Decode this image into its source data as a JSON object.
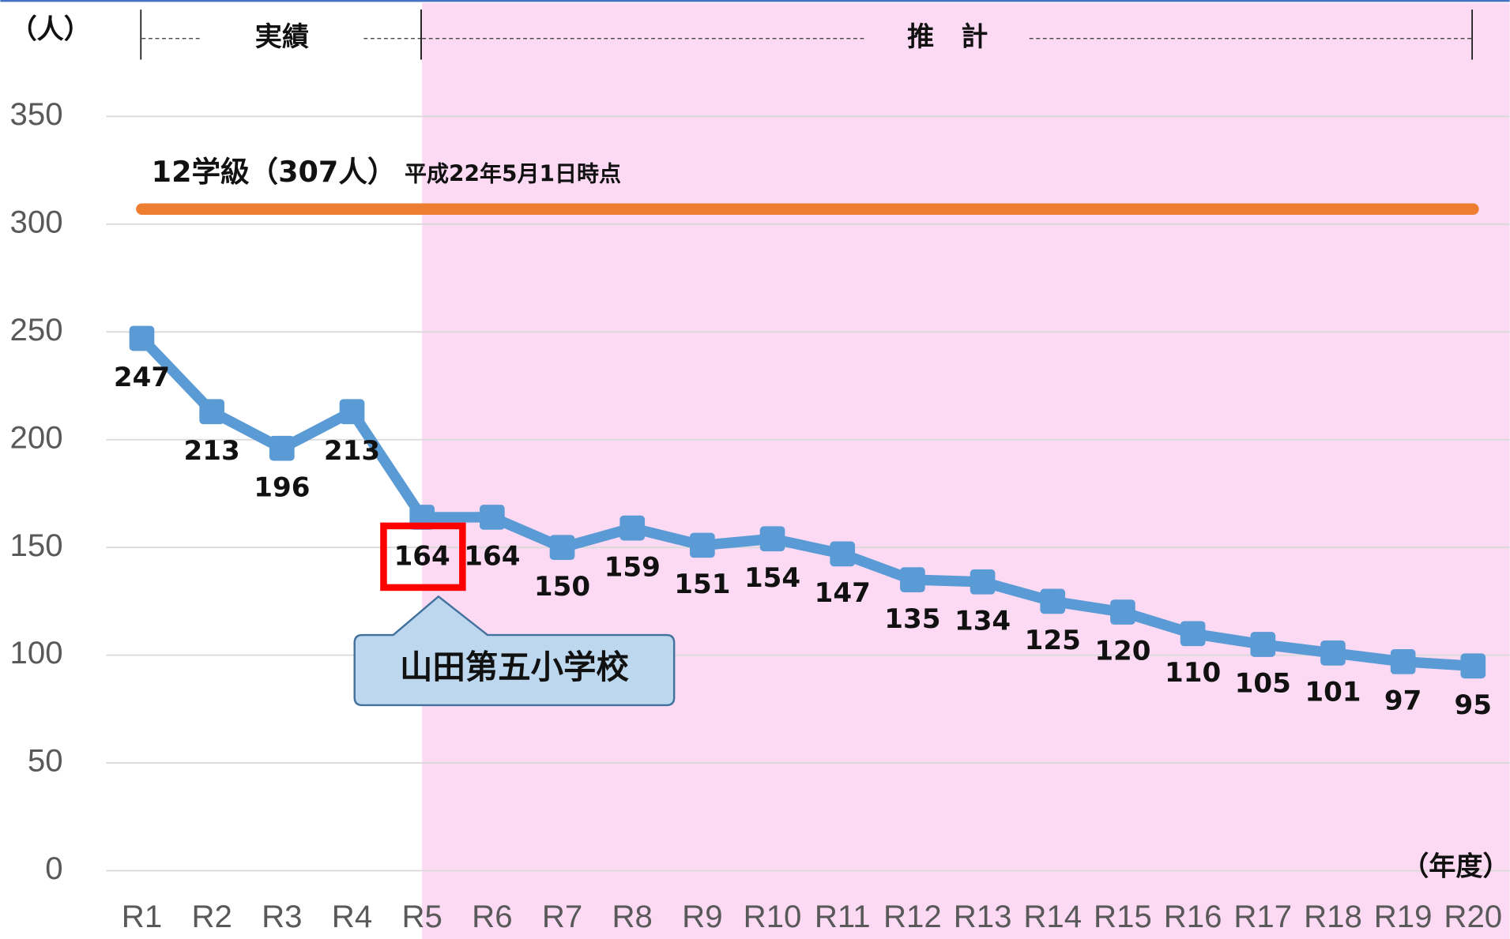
{
  "chart_data": {
    "type": "line",
    "y_label": "（人）",
    "x_label": "（年度）",
    "categories": [
      "R1",
      "R2",
      "R3",
      "R4",
      "R5",
      "R6",
      "R7",
      "R8",
      "R9",
      "R10",
      "R11",
      "R12",
      "R13",
      "R14",
      "R15",
      "R16",
      "R17",
      "R18",
      "R19",
      "R20"
    ],
    "values": [
      247,
      213,
      196,
      213,
      164,
      164,
      150,
      159,
      151,
      154,
      147,
      135,
      134,
      125,
      120,
      110,
      105,
      101,
      97,
      95
    ],
    "color": "#5b9bd5",
    "ylim": [
      0,
      350
    ],
    "yticks": [
      0,
      50,
      100,
      150,
      200,
      250,
      300,
      350
    ],
    "grid": true,
    "periods": [
      {
        "label": "実績",
        "from": "R1",
        "to": "R5"
      },
      {
        "label": "推　計",
        "from": "R5",
        "to": "R20",
        "color": "#fcdaf3"
      }
    ],
    "reference_line": {
      "value": 307,
      "label": "12学級（307人）",
      "note": "平成22年5月1日時点",
      "color": "#ed7d31"
    },
    "callout": {
      "text": "山田第五小学校",
      "category": "R5"
    }
  }
}
